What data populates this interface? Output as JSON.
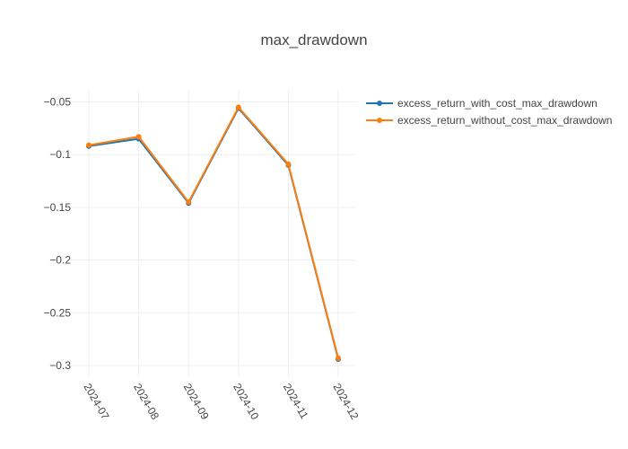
{
  "chart_data": {
    "type": "line",
    "title": "max_drawdown",
    "xlabel": "",
    "ylabel": "",
    "categories": [
      "2024-07",
      "2024-08",
      "2024-09",
      "2024-10",
      "2024-11",
      "2024-12"
    ],
    "ylim": [
      -0.31,
      -0.04
    ],
    "yticks": [
      -0.05,
      -0.1,
      -0.15,
      -0.2,
      -0.25,
      -0.3
    ],
    "ytick_labels": [
      "−0.05",
      "−0.1",
      "−0.15",
      "−0.2",
      "−0.25",
      "−0.3"
    ],
    "grid": true,
    "legend_position": "top-right",
    "series": [
      {
        "name": "excess_return_with_cost_max_drawdown",
        "color": "#1f77b4",
        "values": [
          -0.092,
          -0.085,
          -0.146,
          -0.056,
          -0.11,
          -0.294
        ]
      },
      {
        "name": "excess_return_without_cost_max_drawdown",
        "color": "#ff7f0e",
        "values": [
          -0.091,
          -0.083,
          -0.145,
          -0.055,
          -0.109,
          -0.293
        ]
      }
    ]
  }
}
